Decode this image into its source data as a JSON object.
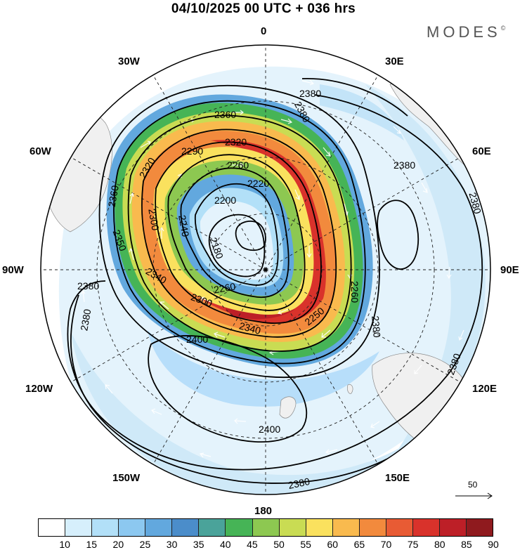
{
  "header": {
    "title": "04/10/2025  00 UTC  + 036 hrs",
    "brand": "MODES",
    "brand_mark": "©"
  },
  "map": {
    "projection": "south-polar-stereographic",
    "longitude_labels": [
      {
        "name": "lon-0",
        "text": "0"
      },
      {
        "name": "lon-30e",
        "text": "30E"
      },
      {
        "name": "lon-60e",
        "text": "60E"
      },
      {
        "name": "lon-90e",
        "text": "90E"
      },
      {
        "name": "lon-120e",
        "text": "120E"
      },
      {
        "name": "lon-150e",
        "text": "150E"
      },
      {
        "name": "lon-180",
        "text": "180"
      },
      {
        "name": "lon-150w",
        "text": "150W"
      },
      {
        "name": "lon-120w",
        "text": "120W"
      },
      {
        "name": "lon-90w",
        "text": "90W"
      },
      {
        "name": "lon-60w",
        "text": "60W"
      },
      {
        "name": "lon-30w",
        "text": "30W"
      }
    ],
    "contour_labels": [
      "2360",
      "2380",
      "2320",
      "2290",
      "2260",
      "2220",
      "2200",
      "2180",
      "2240",
      "2300",
      "2320",
      "2360",
      "2350",
      "2380",
      "2380",
      "2340",
      "2300",
      "2260",
      "2250",
      "2340",
      "2260",
      "2380",
      "2380",
      "2400",
      "2400",
      "2380",
      "2380",
      "2380",
      "2380"
    ],
    "scale_arrow": {
      "label": "50"
    }
  },
  "colorbar": {
    "ticks": [
      "10",
      "15",
      "20",
      "25",
      "30",
      "35",
      "40",
      "45",
      "50",
      "55",
      "60",
      "65",
      "70",
      "75",
      "80",
      "85",
      "90"
    ],
    "colors": [
      "#ffffff",
      "#d6effc",
      "#b2e0f8",
      "#8cc8f0",
      "#62a8de",
      "#4b8dca",
      "#4aa39a",
      "#46b456",
      "#8dc851",
      "#c9dc53",
      "#fae15e",
      "#f9ba4e",
      "#f28a3d",
      "#e85b34",
      "#d9322b",
      "#bd1f27",
      "#8f1a1e"
    ]
  }
}
